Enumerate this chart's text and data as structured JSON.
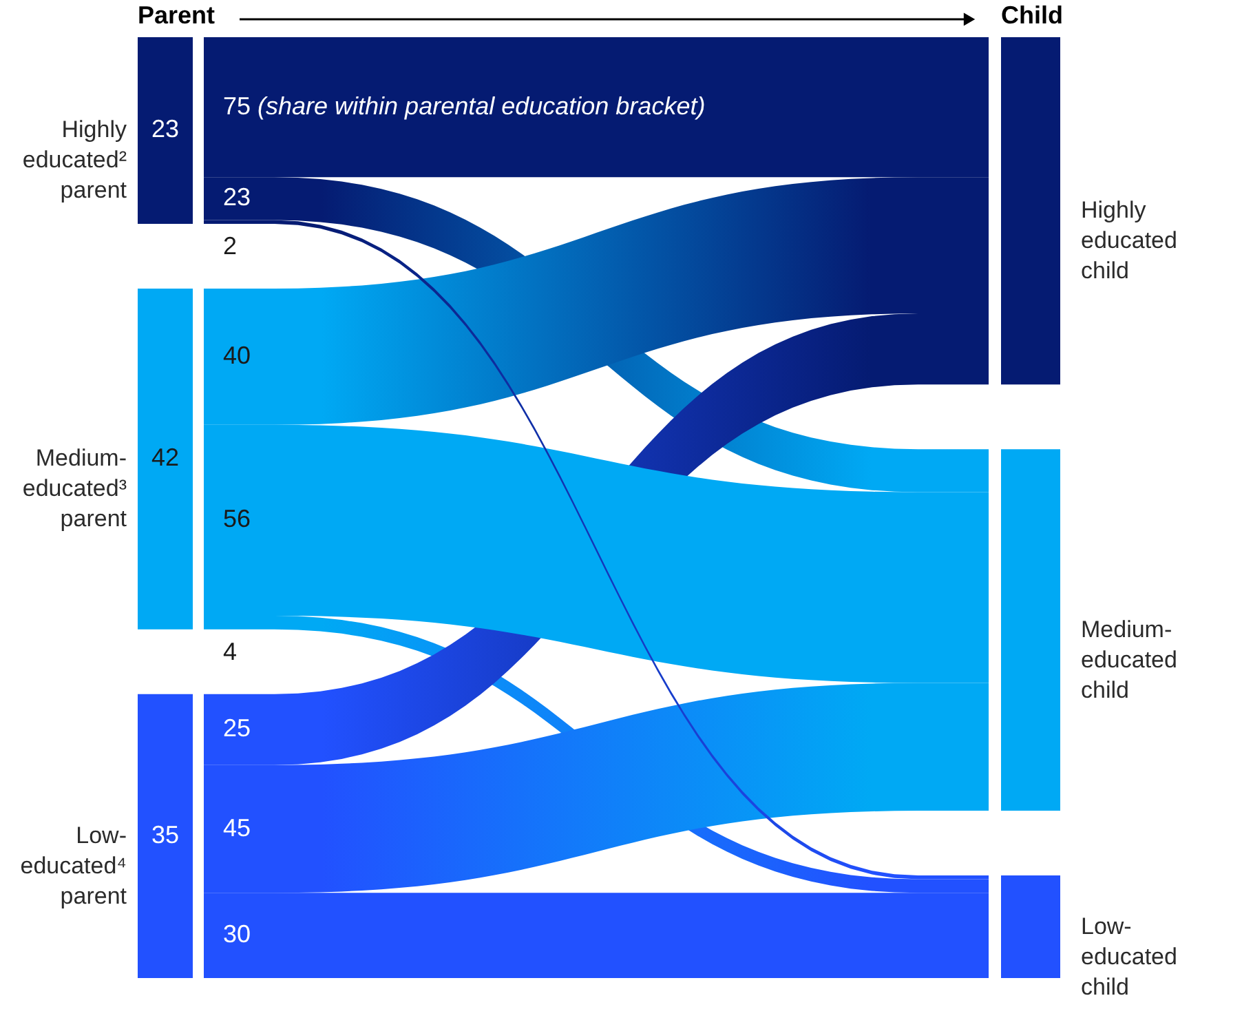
{
  "chart_data": {
    "type": "other",
    "categories": [
      "Highly educated² parent",
      "Medium-educated³ parent",
      "Low-educated⁴ parent"
    ],
    "y2_categories": [
      "Highly educated child",
      "Medium-educated child",
      "Low-educated child"
    ],
    "values": [
      23,
      42,
      35
    ],
    "colors": [
      "#051b72",
      "#00a9f4",
      "#2251ff"
    ],
    "series": [
      {
        "color": "#051b72",
        "values": [
          75,
          40,
          25
        ]
      },
      {
        "color": "#00a9f4",
        "values": [
          23,
          56,
          45
        ]
      },
      {
        "color": "#2251ff",
        "values": [
          2,
          4,
          30
        ]
      }
    ],
    "data_labels": true,
    "annotations": [
      "Parent",
      "Child",
      "(share within parental education bracket)"
    ]
  }
}
